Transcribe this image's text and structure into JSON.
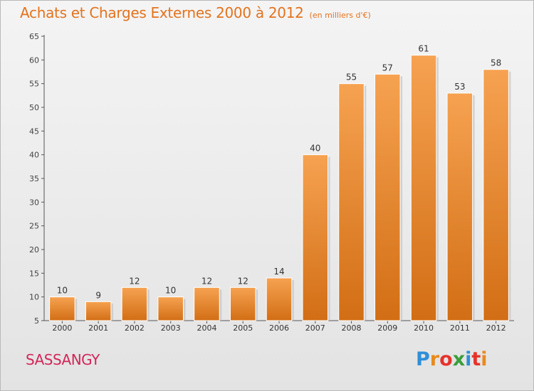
{
  "chart_data": {
    "type": "bar",
    "title": "Achats et Charges Externes 2000 à 2012",
    "subtitle": "(en milliers d'€)",
    "xlabel": "",
    "ylabel": "",
    "categories": [
      "2000",
      "2001",
      "2002",
      "2003",
      "2004",
      "2005",
      "2006",
      "2007",
      "2008",
      "2009",
      "2010",
      "2011",
      "2012"
    ],
    "values": [
      10,
      9,
      12,
      10,
      12,
      12,
      14,
      40,
      55,
      57,
      61,
      53,
      58
    ],
    "ylim": [
      5,
      65
    ],
    "yticks": [
      5,
      10,
      15,
      20,
      25,
      30,
      35,
      40,
      45,
      50,
      55,
      60,
      65
    ],
    "grid": false,
    "data_labels": true,
    "bar_color": "#e8872f"
  },
  "commune": "SASSANGY",
  "logo": {
    "letters": [
      "P",
      "r",
      "o",
      "x",
      "i",
      "t",
      "i"
    ],
    "colors": [
      "#2f8fd6",
      "#e88a1f",
      "#e5332a",
      "#3a9d3a",
      "#2f8fd6",
      "#e5332a",
      "#e88a1f"
    ]
  }
}
